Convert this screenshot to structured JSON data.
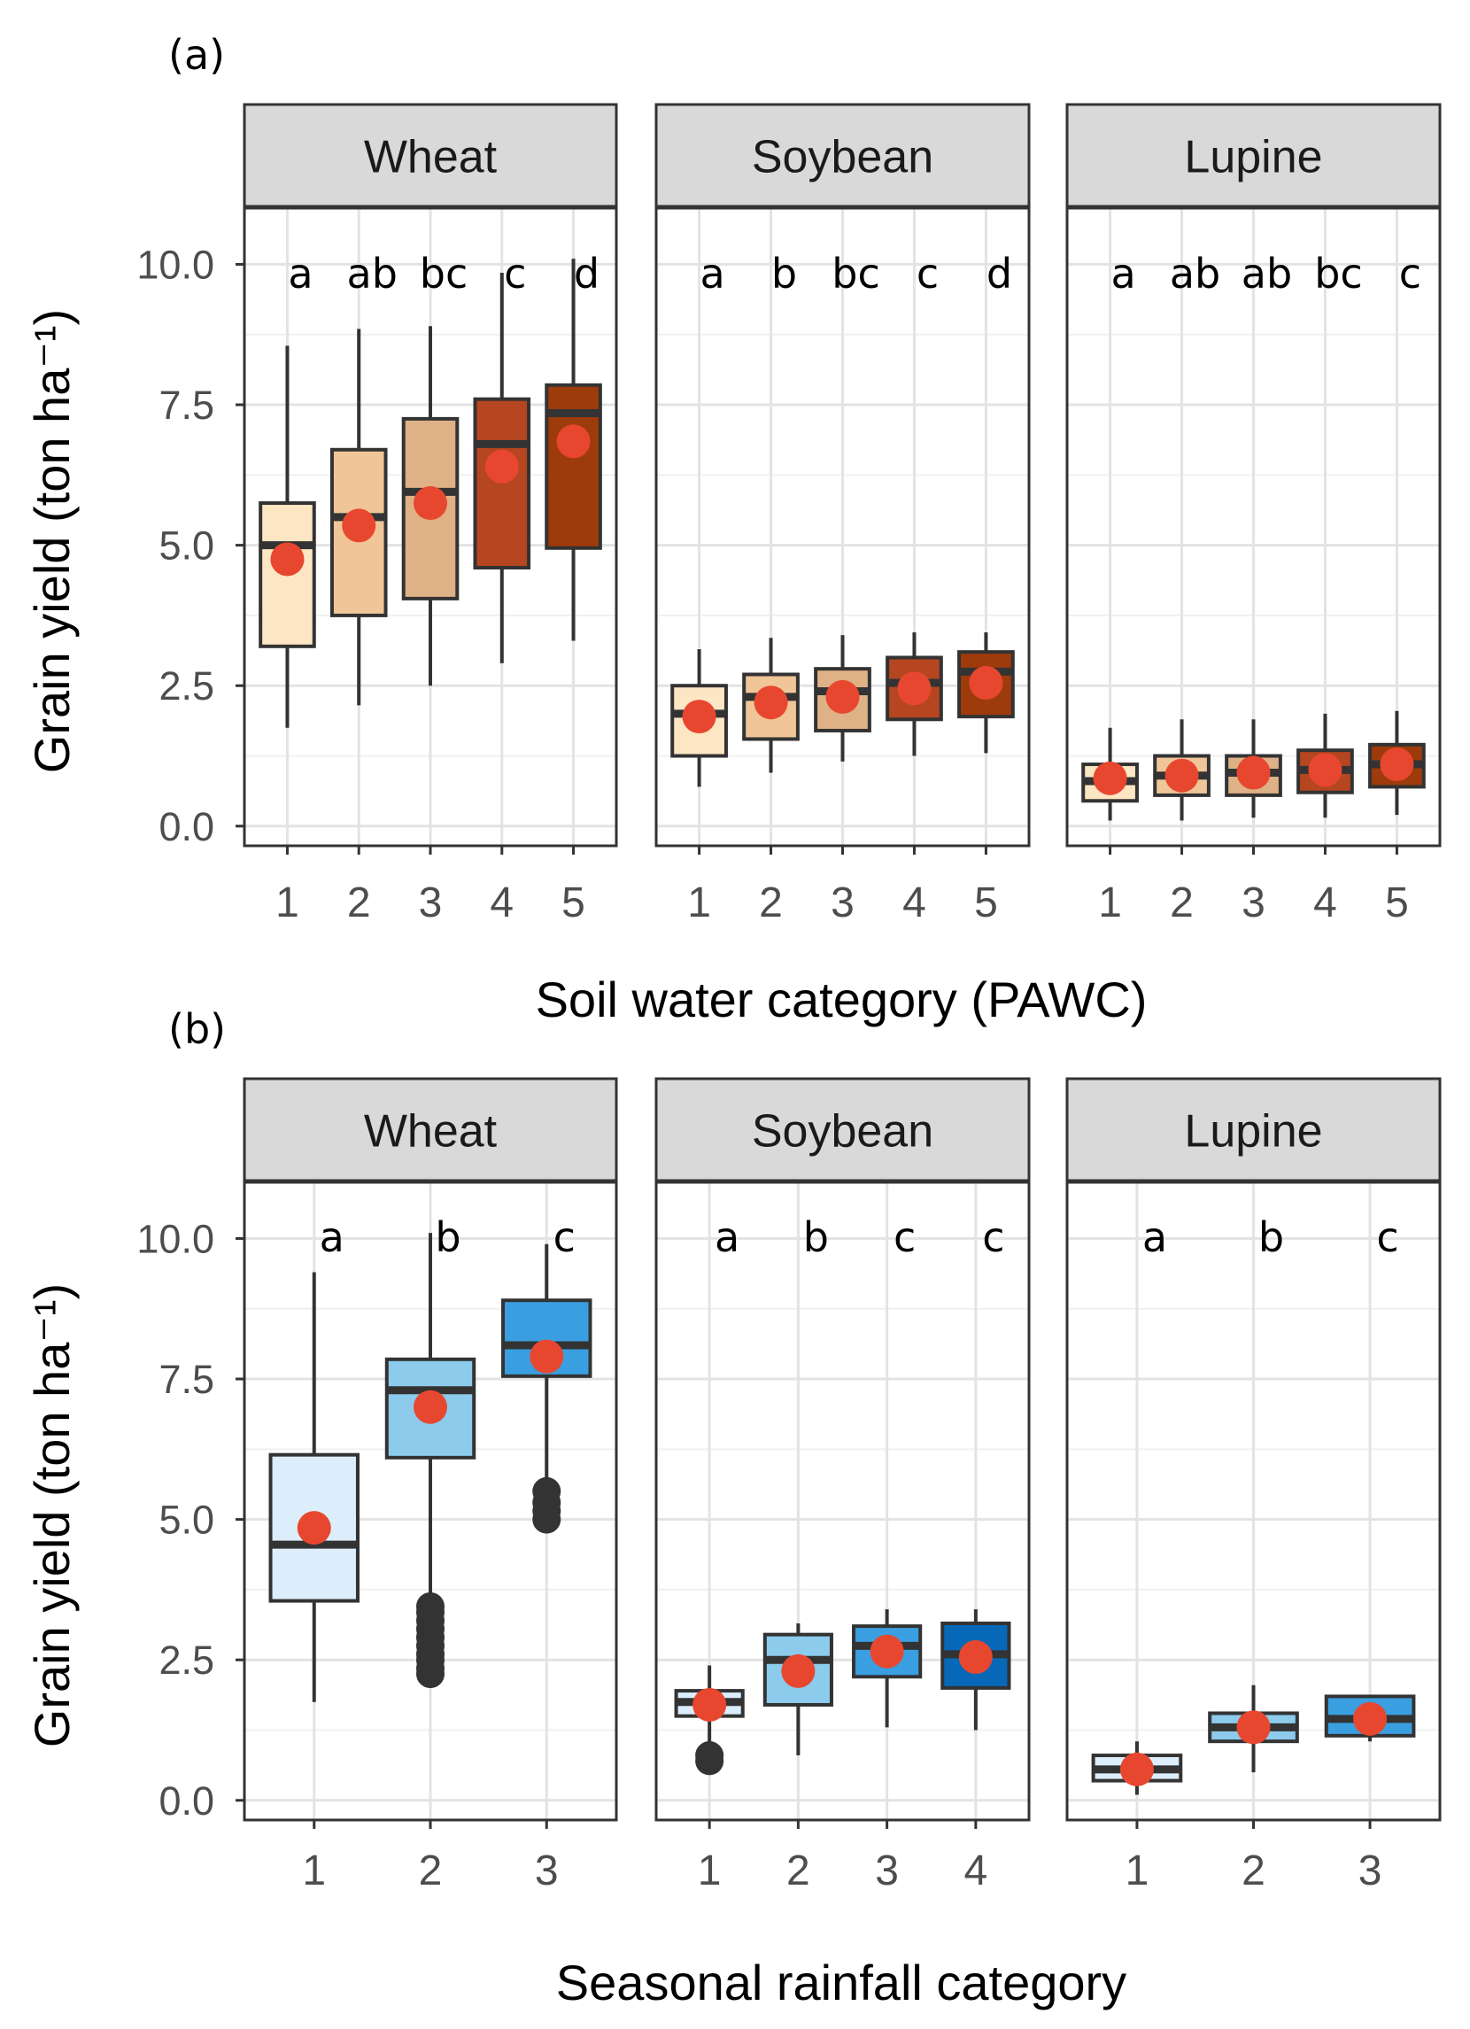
{
  "chart_data": [
    {
      "type": "boxplot",
      "panel_label": "(a)",
      "xlabel": "Soil water category (PAWC)",
      "ylabel": "Grain yield (ton ha⁻¹)",
      "ylim": [
        -0.35,
        11.0
      ],
      "yticks": [
        0.0,
        2.5,
        5.0,
        7.5,
        10.0
      ],
      "ytick_labels": [
        "0.0",
        "2.5",
        "5.0",
        "7.5",
        "10.0"
      ],
      "grid": true,
      "legend": "none",
      "fill_scale": [
        "#fde6c4",
        "#f0c699",
        "#deb186",
        "#b5461f",
        "#9e3b0b"
      ],
      "mean_marker_color": "#e8472f",
      "facets": [
        {
          "title": "Wheat",
          "categories": [
            "1",
            "2",
            "3",
            "4",
            "5"
          ],
          "letters": [
            "a",
            "ab",
            "bc",
            "c",
            "d"
          ],
          "boxes": [
            {
              "min": 1.75,
              "q1": 3.2,
              "median": 5.0,
              "q3": 5.75,
              "max": 8.55,
              "mean": 4.75,
              "outliers": []
            },
            {
              "min": 2.15,
              "q1": 3.75,
              "median": 5.5,
              "q3": 6.7,
              "max": 8.85,
              "mean": 5.35,
              "outliers": []
            },
            {
              "min": 2.5,
              "q1": 4.05,
              "median": 5.95,
              "q3": 7.25,
              "max": 8.9,
              "mean": 5.75,
              "outliers": []
            },
            {
              "min": 2.9,
              "q1": 4.6,
              "median": 6.8,
              "q3": 7.6,
              "max": 9.85,
              "mean": 6.4,
              "outliers": []
            },
            {
              "min": 3.3,
              "q1": 4.95,
              "median": 7.35,
              "q3": 7.85,
              "max": 10.1,
              "mean": 6.85,
              "outliers": []
            }
          ]
        },
        {
          "title": "Soybean",
          "categories": [
            "1",
            "2",
            "3",
            "4",
            "5"
          ],
          "letters": [
            "a",
            "b",
            "bc",
            "c",
            "d"
          ],
          "boxes": [
            {
              "min": 0.7,
              "q1": 1.25,
              "median": 2.0,
              "q3": 2.5,
              "max": 3.15,
              "mean": 1.95,
              "outliers": []
            },
            {
              "min": 0.95,
              "q1": 1.55,
              "median": 2.3,
              "q3": 2.7,
              "max": 3.35,
              "mean": 2.2,
              "outliers": []
            },
            {
              "min": 1.15,
              "q1": 1.7,
              "median": 2.4,
              "q3": 2.8,
              "max": 3.4,
              "mean": 2.3,
              "outliers": []
            },
            {
              "min": 1.25,
              "q1": 1.9,
              "median": 2.55,
              "q3": 3.0,
              "max": 3.45,
              "mean": 2.45,
              "outliers": []
            },
            {
              "min": 1.3,
              "q1": 1.95,
              "median": 2.75,
              "q3": 3.1,
              "max": 3.45,
              "mean": 2.55,
              "outliers": []
            }
          ]
        },
        {
          "title": "Lupine",
          "categories": [
            "1",
            "2",
            "3",
            "4",
            "5"
          ],
          "letters": [
            "a",
            "ab",
            "ab",
            "bc",
            "c"
          ],
          "boxes": [
            {
              "min": 0.1,
              "q1": 0.45,
              "median": 0.8,
              "q3": 1.1,
              "max": 1.75,
              "mean": 0.85,
              "outliers": []
            },
            {
              "min": 0.1,
              "q1": 0.55,
              "median": 0.9,
              "q3": 1.25,
              "max": 1.9,
              "mean": 0.9,
              "outliers": []
            },
            {
              "min": 0.15,
              "q1": 0.55,
              "median": 0.95,
              "q3": 1.25,
              "max": 1.9,
              "mean": 0.95,
              "outliers": []
            },
            {
              "min": 0.15,
              "q1": 0.6,
              "median": 1.0,
              "q3": 1.35,
              "max": 2.0,
              "mean": 1.0,
              "outliers": []
            },
            {
              "min": 0.2,
              "q1": 0.7,
              "median": 1.1,
              "q3": 1.45,
              "max": 2.05,
              "mean": 1.1,
              "outliers": []
            }
          ]
        }
      ]
    },
    {
      "type": "boxplot",
      "panel_label": "(b)",
      "xlabel": "Seasonal rainfall category",
      "ylabel": "Grain yield (ton ha⁻¹)",
      "ylim": [
        -0.35,
        11.0
      ],
      "yticks": [
        0.0,
        2.5,
        5.0,
        7.5,
        10.0
      ],
      "ytick_labels": [
        "0.0",
        "2.5",
        "5.0",
        "7.5",
        "10.0"
      ],
      "grid": true,
      "legend": "none",
      "fill_scale": [
        "#dceefb",
        "#8ccbeb",
        "#3a9fe0",
        "#0868b8"
      ],
      "mean_marker_color": "#e8472f",
      "facets": [
        {
          "title": "Wheat",
          "categories": [
            "1",
            "2",
            "3"
          ],
          "letters": [
            "a",
            "b",
            "c"
          ],
          "boxes": [
            {
              "min": 1.75,
              "q1": 3.55,
              "median": 4.55,
              "q3": 6.15,
              "max": 9.4,
              "mean": 4.85,
              "outliers": []
            },
            {
              "min": 3.5,
              "q1": 6.1,
              "median": 7.3,
              "q3": 7.85,
              "max": 10.1,
              "mean": 7.0,
              "outliers": [
                3.45,
                3.35,
                3.2,
                3.05,
                2.9,
                2.75,
                2.6,
                2.5,
                2.35,
                2.25
              ]
            },
            {
              "min": 5.6,
              "q1": 7.55,
              "median": 8.1,
              "q3": 8.9,
              "max": 9.9,
              "mean": 7.9,
              "outliers": [
                5.5,
                5.3,
                5.15,
                5.0
              ]
            }
          ]
        },
        {
          "title": "Soybean",
          "categories": [
            "1",
            "2",
            "3",
            "4"
          ],
          "letters": [
            "a",
            "b",
            "c",
            "c"
          ],
          "boxes": [
            {
              "min": 0.9,
              "q1": 1.5,
              "median": 1.75,
              "q3": 1.95,
              "max": 2.4,
              "mean": 1.7,
              "outliers": [
                0.8,
                0.7
              ]
            },
            {
              "min": 0.8,
              "q1": 1.7,
              "median": 2.5,
              "q3": 2.95,
              "max": 3.15,
              "mean": 2.3,
              "outliers": []
            },
            {
              "min": 1.3,
              "q1": 2.2,
              "median": 2.75,
              "q3": 3.1,
              "max": 3.4,
              "mean": 2.65,
              "outliers": []
            },
            {
              "min": 1.25,
              "q1": 2.0,
              "median": 2.6,
              "q3": 3.15,
              "max": 3.4,
              "mean": 2.55,
              "outliers": []
            }
          ]
        },
        {
          "title": "Lupine",
          "categories": [
            "1",
            "2",
            "3"
          ],
          "letters": [
            "a",
            "b",
            "c"
          ],
          "boxes": [
            {
              "min": 0.1,
              "q1": 0.35,
              "median": 0.55,
              "q3": 0.8,
              "max": 1.05,
              "mean": 0.55,
              "outliers": []
            },
            {
              "min": 0.5,
              "q1": 1.05,
              "median": 1.3,
              "q3": 1.55,
              "max": 2.05,
              "mean": 1.3,
              "outliers": []
            },
            {
              "min": 1.05,
              "q1": 1.15,
              "median": 1.45,
              "q3": 1.85,
              "max": 1.85,
              "mean": 1.45,
              "outliers": []
            }
          ]
        }
      ]
    }
  ]
}
